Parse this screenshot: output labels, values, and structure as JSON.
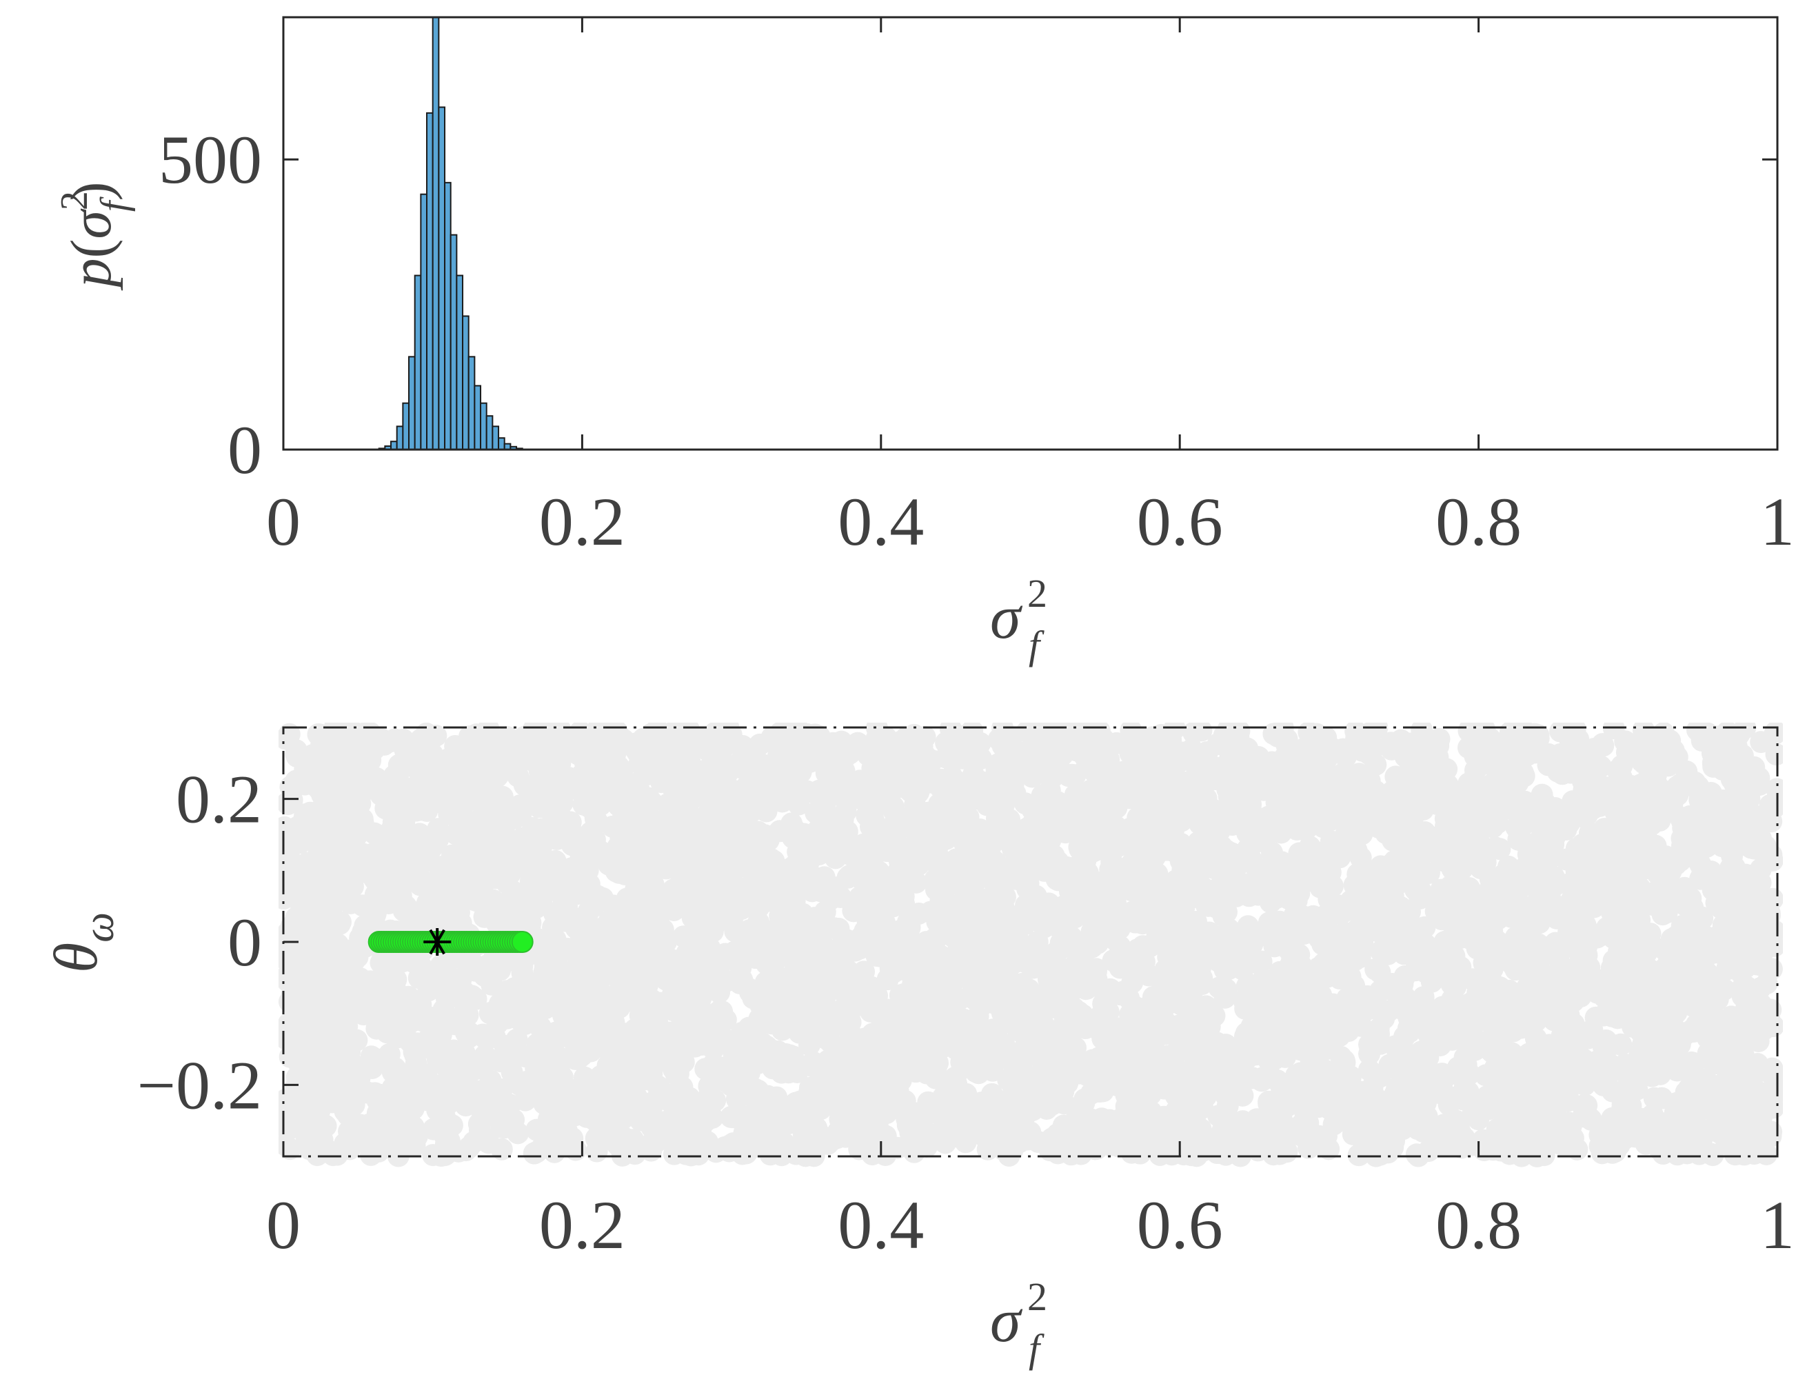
{
  "chart_data": [
    {
      "type": "bar",
      "xlabel_parts": {
        "p": "p",
        "open": "(",
        "sigma": "σ",
        "sup": "2",
        "sub": "f",
        "close": ")"
      },
      "ylabel_text": "p(σ_f^2)",
      "xlabel_text": "σ_f^2",
      "xlim": [
        0,
        1
      ],
      "ylim": [
        0,
        745
      ],
      "xticks": [
        0,
        0.2,
        0.4,
        0.6,
        0.8,
        1
      ],
      "xtick_labels": [
        "0",
        "0.2",
        "0.4",
        "0.6",
        "0.8",
        "1"
      ],
      "yticks": [
        0,
        500
      ],
      "ytick_labels": [
        "0",
        "500"
      ],
      "bin_width": 0.004,
      "bin_starts": [
        0.064,
        0.068,
        0.072,
        0.076,
        0.08,
        0.084,
        0.088,
        0.092,
        0.096,
        0.1,
        0.104,
        0.108,
        0.112,
        0.116,
        0.12,
        0.124,
        0.128,
        0.132,
        0.136,
        0.14,
        0.144,
        0.148,
        0.152,
        0.156
      ],
      "values": [
        2,
        6,
        14,
        40,
        80,
        160,
        300,
        440,
        580,
        745,
        590,
        460,
        370,
        300,
        230,
        160,
        110,
        80,
        58,
        40,
        20,
        10,
        5,
        2
      ],
      "colors": {
        "bar_fill": "#5aa6d6",
        "bar_edge": "#1a1a1a",
        "axis": "#262626"
      },
      "grid": false
    },
    {
      "type": "scatter",
      "xlabel_text": "σ_f^2",
      "ylabel_text": "θ_ω",
      "xlim": [
        0,
        1
      ],
      "ylim": [
        -0.3,
        0.3
      ],
      "xticks": [
        0,
        0.2,
        0.4,
        0.6,
        0.8,
        1
      ],
      "xtick_labels": [
        "0",
        "0.2",
        "0.4",
        "0.6",
        "0.8",
        "1"
      ],
      "yticks": [
        -0.2,
        0,
        0.2
      ],
      "ytick_labels": [
        "−0.2",
        "0",
        "0.2"
      ],
      "series": [
        {
          "role": "prior samples",
          "color": "#ececec",
          "count": 6000,
          "x_range": [
            0,
            1
          ],
          "y_range": [
            -0.3,
            0.3
          ]
        },
        {
          "role": "posterior samples",
          "color": "#22ee22",
          "edge_color": "#2bc02b",
          "x_range": [
            0.064,
            0.16
          ],
          "y_value": 0
        },
        {
          "role": "estimate",
          "marker": "asterisk",
          "color": "#000000",
          "x": 0.103,
          "y": 0
        }
      ],
      "box_style": "dash-dot",
      "grid": false
    }
  ]
}
